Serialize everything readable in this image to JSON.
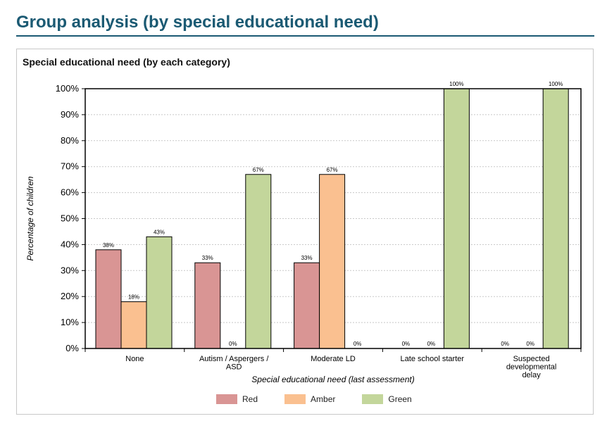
{
  "page_title": "Group analysis (by special educational need)",
  "panel_title": "Special educational need (by each category)",
  "colors": {
    "title": "#1b5a73",
    "red": "#d99594",
    "amber": "#fac090",
    "green": "#c3d69b"
  },
  "chart_data": {
    "type": "bar",
    "title": "Special educational need (by each category)",
    "xlabel": "Special educational need (last assessment)",
    "ylabel": "Percentage of children",
    "ylim": [
      0,
      100
    ],
    "yticks": [
      "0%",
      "10%",
      "20%",
      "30%",
      "40%",
      "50%",
      "60%",
      "70%",
      "80%",
      "90%",
      "100%"
    ],
    "grid": true,
    "legend_position": "bottom",
    "categories": [
      [
        "None"
      ],
      [
        "Autism / Aspergers /",
        "ASD"
      ],
      [
        "Moderate LD"
      ],
      [
        "Late school starter"
      ],
      [
        "Suspected",
        "developmental",
        "delay"
      ]
    ],
    "series": [
      {
        "name": "Red",
        "color": "#d99594",
        "values": [
          38,
          33,
          33,
          0,
          0
        ],
        "labels": [
          "38%",
          "33%",
          "33%",
          "0%",
          "0%"
        ]
      },
      {
        "name": "Amber",
        "color": "#fac090",
        "values": [
          18,
          0,
          67,
          0,
          0
        ],
        "labels": [
          "18%",
          "0%",
          "67%",
          "0%",
          "0%"
        ]
      },
      {
        "name": "Green",
        "color": "#c3d69b",
        "values": [
          43,
          67,
          0,
          100,
          100
        ],
        "labels": [
          "43%",
          "67%",
          "0%",
          "100%",
          "100%"
        ]
      }
    ]
  }
}
